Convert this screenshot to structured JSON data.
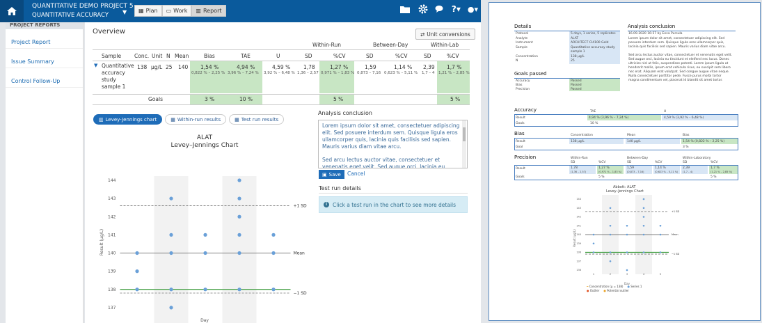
{
  "header": {
    "project": "QUANTITATIVE DEMO PROJECT 5",
    "study": "QUANTITATIVE ACCURACY",
    "tabs": [
      {
        "label": "Plan"
      },
      {
        "label": "Work"
      },
      {
        "label": "Report"
      }
    ]
  },
  "sidebar": {
    "heading": "PROJECT REPORTS",
    "items": [
      "Project Report",
      "Issue Summary",
      "Control Follow-Up"
    ]
  },
  "overview": {
    "title": "Overview",
    "unit_conversions": "Unit conversions",
    "groups": {
      "within_run": "Within-Run",
      "between_day": "Between-Day",
      "within_lab": "Within-Lab"
    },
    "columns": [
      "Sample",
      "Conc.",
      "Unit",
      "N",
      "Mean",
      "Bias",
      "TAE",
      "U",
      "SD",
      "%CV",
      "SD",
      "%CV",
      "SD",
      "%CV"
    ],
    "row": {
      "sample": [
        "Quantitative",
        "accuracy",
        "study",
        "sample 1"
      ],
      "conc": "138",
      "unit": "µg/L",
      "n": "25",
      "mean": "140",
      "bias": "1,54 %",
      "bias_ci": "0,822 % – 2,25 %",
      "tae": "4,94 %",
      "tae_ci": "3,96 % – 7,24 %",
      "u": "4,59 %",
      "u_ci": "3,92 % – 6,48 %",
      "wr_sd": "1,78",
      "wr_sd_ci": "1,36 – 2,57",
      "wr_cv": "1,27 %",
      "wr_cv_ci": "0,971 % – 1,83 %",
      "bd_sd": "1,59",
      "bd_sd_ci": "0,873 – 7,16",
      "bd_cv": "1,14 %",
      "bd_cv_ci": "0,623 % – 5,11 %",
      "wl_sd": "2,39",
      "wl_sd_ci": "1,7 – 4",
      "wl_cv": "1,7 %",
      "wl_cv_ci": "1,21 % – 2,85 %"
    },
    "goals": {
      "label": "Goals",
      "bias": "3 %",
      "tae": "10 %",
      "wr_cv": "5 %",
      "wl_cv": "5 %"
    }
  },
  "tabs2": [
    {
      "label": "Levey-Jennings chart"
    },
    {
      "label": "Within-run results"
    },
    {
      "label": "Test run results"
    }
  ],
  "conclusion": {
    "title": "Analysis conclusion",
    "p1": "Lorem ipsum dolor sit amet, consectetuer adipiscing elit. Sed posuere interdum sem. Quisque ligula eros ullamcorper quis, lacinia quis facilisis sed sapien. Mauris varius diam vitae arcu.",
    "p2": "Sed arcu lectus auctor vitae, consectetuer et venenatis eget velit. Sed augue orci, lacinia eu tincidunt et eleifend nec lacus.",
    "save": "Save",
    "cancel": "Cancel"
  },
  "test_run": {
    "title": "Test run details",
    "info": "Click a test run in the chart to see more details"
  },
  "chart_data": {
    "type": "scatter",
    "title": "ALAT",
    "subtitle": "Levey–Jennings Chart",
    "xlabel": "Day",
    "ylabel": "Result (µg/L)",
    "x_ticks": [
      "1",
      "2",
      "3",
      "4",
      "5"
    ],
    "ylim": [
      136,
      144
    ],
    "y_ticks": [
      "136",
      "137",
      "138",
      "139",
      "140",
      "141",
      "142",
      "143",
      "144"
    ],
    "mean": 140,
    "plus1sd": 142.6,
    "minus1sd": 137.8,
    "green_line": 138,
    "mean_label": "Mean",
    "plus_label": "+1 SD",
    "minus_label": "−1 SD",
    "points": [
      [
        1,
        140
      ],
      [
        1,
        139
      ],
      [
        1,
        138
      ],
      [
        2,
        143
      ],
      [
        2,
        141
      ],
      [
        2,
        140
      ],
      [
        2,
        138
      ],
      [
        2,
        137
      ],
      [
        3,
        141
      ],
      [
        3,
        140
      ],
      [
        3,
        138
      ],
      [
        3,
        136
      ],
      [
        4,
        144
      ],
      [
        4,
        143
      ],
      [
        4,
        142
      ],
      [
        4,
        141
      ],
      [
        4,
        140
      ],
      [
        4,
        138
      ],
      [
        5,
        141
      ],
      [
        5,
        140
      ],
      [
        5,
        138
      ]
    ]
  },
  "report": {
    "details_title": "Details",
    "details": [
      [
        "Protocol",
        "5 days, 1 series, 5 replicates"
      ],
      [
        "Analyte",
        "ALAT"
      ],
      [
        "Instrument",
        "ARCHITECT CI4100 Gold"
      ],
      [
        "Sample",
        "Quantitative accuracy study"
      ],
      [
        "",
        "sample 1"
      ],
      [
        "Concentration",
        "138 µg/L"
      ],
      [
        "N",
        "25"
      ]
    ],
    "conclusion_title": "Analysis conclusion",
    "conclusion_date": "16.09.2020 16:57 by Eeva Pursula",
    "conclusion_text": [
      "Lorem ipsum dolor sit amet, consectetuer adipiscing elit. Sed",
      "posuere interdum sem. Quisque ligula eros ullamcorper quis,",
      "lacinia quis facilisis sed sapien. Mauris varius diam vitae arcu.",
      "",
      "Sed arcu lectus auctor vitae, consectetuer et venenatis eget velit.",
      "Sed augue orci, lacinia eu tincidunt et eleifend nec lacus. Donec",
      "ultricies nisl ut felis, suspendisse potenti. Lorem ipsum ligula ut",
      "hendrerit mollis, ipsum erat vehicula risus, eu suscipit sem libero",
      "nec erat. Aliquam erat volutpat. Sed congue augue vitae neque.",
      "Nulla consectetuer porttitor pede. Fusce purus morbi tortor",
      "magna condimentum vel, placerat id blandit sit amet tortor."
    ],
    "goals_title": "Goals passed",
    "goals": [
      [
        "Accuracy",
        "Passed"
      ],
      [
        "Bias",
        "Passed"
      ],
      [
        "Precision",
        "Passed"
      ]
    ],
    "accuracy": {
      "title": "Accuracy",
      "tae": "TAE",
      "u": "U",
      "result": "Result",
      "goals": "Goals",
      "tae_val": "4,94 % (3,96 % – 7,24 %)",
      "u_val": "4,59 % (3,92 % – 6,48 %)",
      "goal_val": "10 %"
    },
    "bias": {
      "title": "Bias",
      "conc": "Concentration",
      "mean": "Mean",
      "bias": "Bias",
      "result": "Result",
      "goal": "Goal",
      "conc_val": "138 µg/L",
      "mean_val": "140 µg/L",
      "bias_val": "1,54 % (0,822 % – 2,25 %)",
      "goal_val": "3 %"
    },
    "precision": {
      "title": "Precision",
      "wr": "Within-Run",
      "bd": "Between-Day",
      "wl": "Within-Laboratory",
      "sd": "SD",
      "cv": "%CV",
      "result": "Result",
      "goals": "Goals",
      "wr_sd": "1,78",
      "wr_sd_ci": "(1,36 – 2,57)",
      "wr_cv": "1,27 %",
      "wr_cv_ci": "(0,971 % – 1,83 %)",
      "bd_sd": "1,59",
      "bd_sd_ci": "(0,873 – 7,16)",
      "bd_cv": "1,14 %",
      "bd_cv_ci": "(0,623 % – 5,11 %)",
      "wl_sd": "2,39",
      "wl_sd_ci": "(1,7 – 4)",
      "wl_cv": "1,7 %",
      "wl_cv_ci": "(1,21 % – 2,85 %)",
      "wr_goal": "5 %",
      "wl_goal": "5 %"
    },
    "chart_title": "Abbott: ALAT",
    "chart_subtitle": "Levey–Jennings Chart",
    "legend": [
      "Concentration (µ = 138)",
      "Series 1",
      "Outlier",
      "Potential outlier"
    ]
  }
}
